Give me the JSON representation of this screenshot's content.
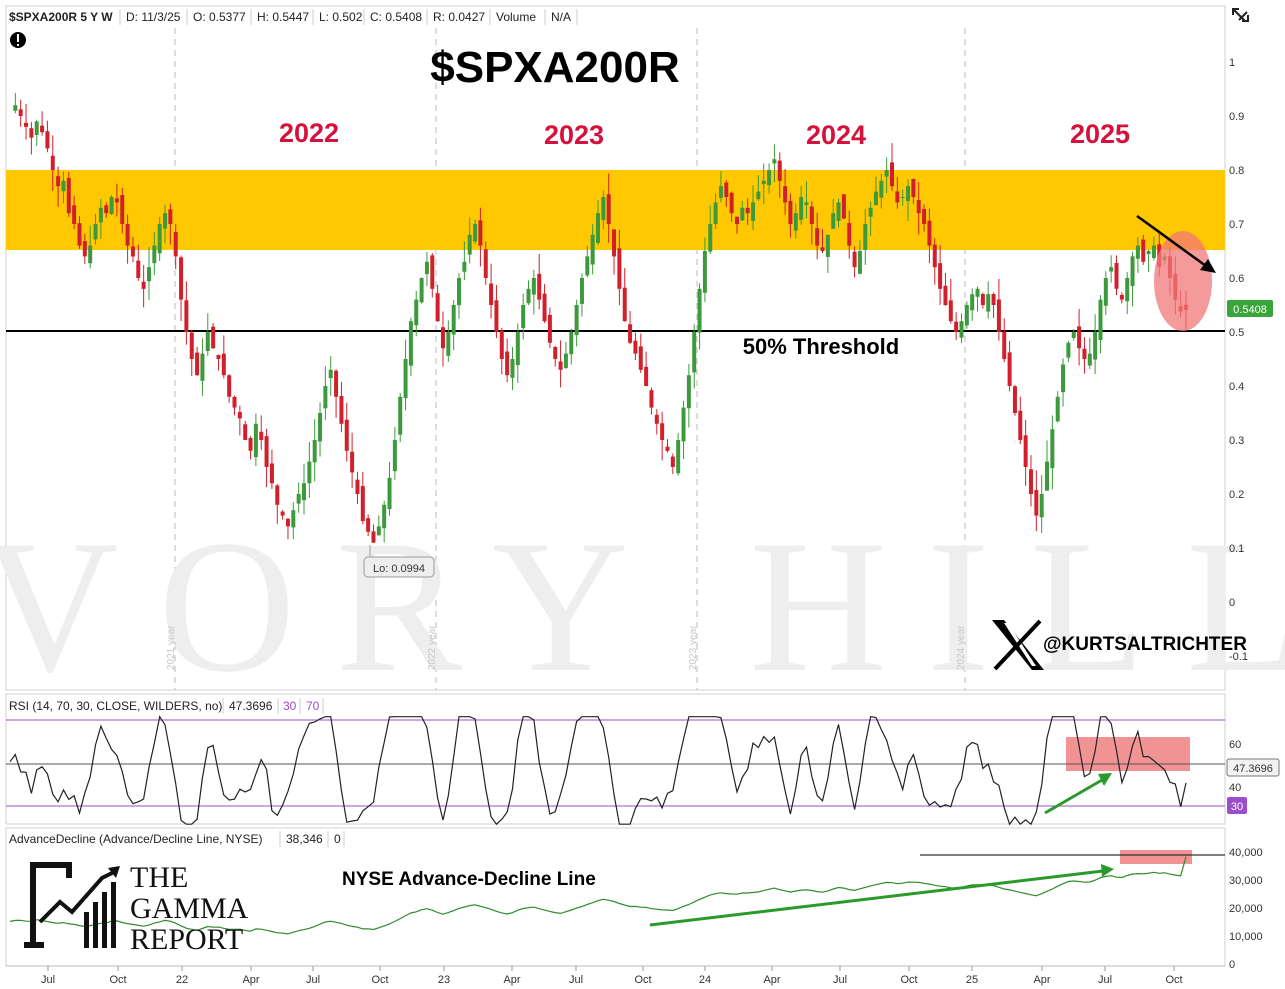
{
  "header": {
    "symbol": "$SPXA200R 5 Y W",
    "date": "D: 11/3/25",
    "open": "O: 0.5377",
    "high": "H: 0.5447",
    "low": "L: 0.502",
    "close": "C: 0.5408",
    "range": "R: 0.0427",
    "volume_label": "Volume",
    "volume_value": "N/A"
  },
  "annotations": {
    "main_title": "$SPXA200R",
    "year_labels": [
      "2022",
      "2023",
      "2024",
      "2025"
    ],
    "threshold_label": "50% Threshold",
    "low_callout": "Lo: 0.0994",
    "current_value": "0.5408",
    "handle": "@KURTSALTRICHTER",
    "ad_title": "NYSE Advance-Decline Line",
    "watermark": "IVORY HILL",
    "logo_lines": [
      "THE",
      "GAMMA",
      "REPORT"
    ],
    "vertical_year_labels": [
      "2021 year",
      "2022 year",
      "2023 year",
      "2024 year"
    ]
  },
  "rsi_panel": {
    "label": "RSI (14, 70, 30, CLOSE, WILDERS, no)",
    "value": "47.3696",
    "level_low": "30",
    "level_high": "70",
    "y_ticks": [
      "60",
      "40"
    ],
    "current_tag": "47.3696",
    "low_tag": "30"
  },
  "ad_panel": {
    "label": "AdvanceDecline (Advance/Decline Line, NYSE)",
    "value": "38,346",
    "extra": "0",
    "y_ticks": [
      "40,000",
      "30,000",
      "20,000",
      "10,000",
      "0"
    ]
  },
  "x_axis": {
    "labels": [
      "Jul",
      "Oct",
      "22",
      "Apr",
      "Jul",
      "Oct",
      "23",
      "Apr",
      "Jul",
      "Oct",
      "24",
      "Apr",
      "Jul",
      "Oct",
      "25",
      "Apr",
      "Jul",
      "Oct"
    ]
  },
  "colors": {
    "up": "#3c9a3c",
    "down": "#d1202b",
    "zone": "#ffc800",
    "year_text": "#d4123b",
    "rsi_line": "#222222",
    "ad_line_up": "#2e8b2e",
    "ad_line_down": "#c0282e",
    "level_purple": "#9b4dca",
    "arrow_green": "#2a9a2a"
  },
  "chart_data": {
    "type": "candlestick",
    "title": "$SPXA200R",
    "y_axis_ticks": [
      1,
      0.9,
      0.8,
      0.7,
      0.6,
      0.5,
      0.4,
      0.3,
      0.2,
      0.1,
      0,
      -0.1
    ],
    "ylim": [
      -0.2,
      1.1
    ],
    "highlight_zone": [
      0.655,
      0.8
    ],
    "threshold": 0.5,
    "last_close": 0.5408,
    "series_close_approx": [
      0.91,
      0.92,
      0.9,
      0.88,
      0.86,
      0.89,
      0.87,
      0.84,
      0.8,
      0.77,
      0.78,
      0.72,
      0.7,
      0.66,
      0.64,
      0.66,
      0.7,
      0.73,
      0.72,
      0.75,
      0.74,
      0.7,
      0.66,
      0.64,
      0.6,
      0.58,
      0.62,
      0.66,
      0.7,
      0.72,
      0.7,
      0.64,
      0.56,
      0.5,
      0.45,
      0.42,
      0.46,
      0.5,
      0.47,
      0.45,
      0.42,
      0.38,
      0.36,
      0.34,
      0.3,
      0.28,
      0.33,
      0.3,
      0.25,
      0.22,
      0.18,
      0.16,
      0.14,
      0.17,
      0.2,
      0.22,
      0.26,
      0.3,
      0.35,
      0.4,
      0.43,
      0.38,
      0.33,
      0.28,
      0.24,
      0.2,
      0.15,
      0.13,
      0.11,
      0.14,
      0.18,
      0.23,
      0.3,
      0.38,
      0.45,
      0.52,
      0.56,
      0.6,
      0.63,
      0.58,
      0.52,
      0.47,
      0.5,
      0.55,
      0.6,
      0.63,
      0.68,
      0.7,
      0.66,
      0.6,
      0.55,
      0.5,
      0.45,
      0.42,
      0.45,
      0.5,
      0.55,
      0.58,
      0.6,
      0.56,
      0.52,
      0.48,
      0.45,
      0.43,
      0.46,
      0.5,
      0.55,
      0.6,
      0.64,
      0.68,
      0.72,
      0.75,
      0.7,
      0.64,
      0.58,
      0.52,
      0.48,
      0.46,
      0.43,
      0.4,
      0.36,
      0.33,
      0.3,
      0.28,
      0.25,
      0.3,
      0.36,
      0.42,
      0.5,
      0.58,
      0.65,
      0.7,
      0.74,
      0.77,
      0.75,
      0.72,
      0.7,
      0.73,
      0.72,
      0.74,
      0.76,
      0.78,
      0.8,
      0.82,
      0.78,
      0.74,
      0.7,
      0.72,
      0.75,
      0.74,
      0.7,
      0.66,
      0.65,
      0.68,
      0.72,
      0.74,
      0.71,
      0.66,
      0.62,
      0.65,
      0.7,
      0.73,
      0.76,
      0.78,
      0.8,
      0.77,
      0.74,
      0.75,
      0.77,
      0.75,
      0.72,
      0.7,
      0.66,
      0.62,
      0.58,
      0.55,
      0.52,
      0.5,
      0.52,
      0.55,
      0.57,
      0.58,
      0.55,
      0.57,
      0.55,
      0.5,
      0.45,
      0.4,
      0.35,
      0.3,
      0.25,
      0.2,
      0.16,
      0.2,
      0.26,
      0.32,
      0.38,
      0.44,
      0.48,
      0.5,
      0.47,
      0.45,
      0.46,
      0.5,
      0.56,
      0.6,
      0.62,
      0.58,
      0.56,
      0.6,
      0.64,
      0.66,
      0.63,
      0.65,
      0.66,
      0.62,
      0.64,
      0.6,
      0.56,
      0.5377,
      0.5408
    ]
  }
}
